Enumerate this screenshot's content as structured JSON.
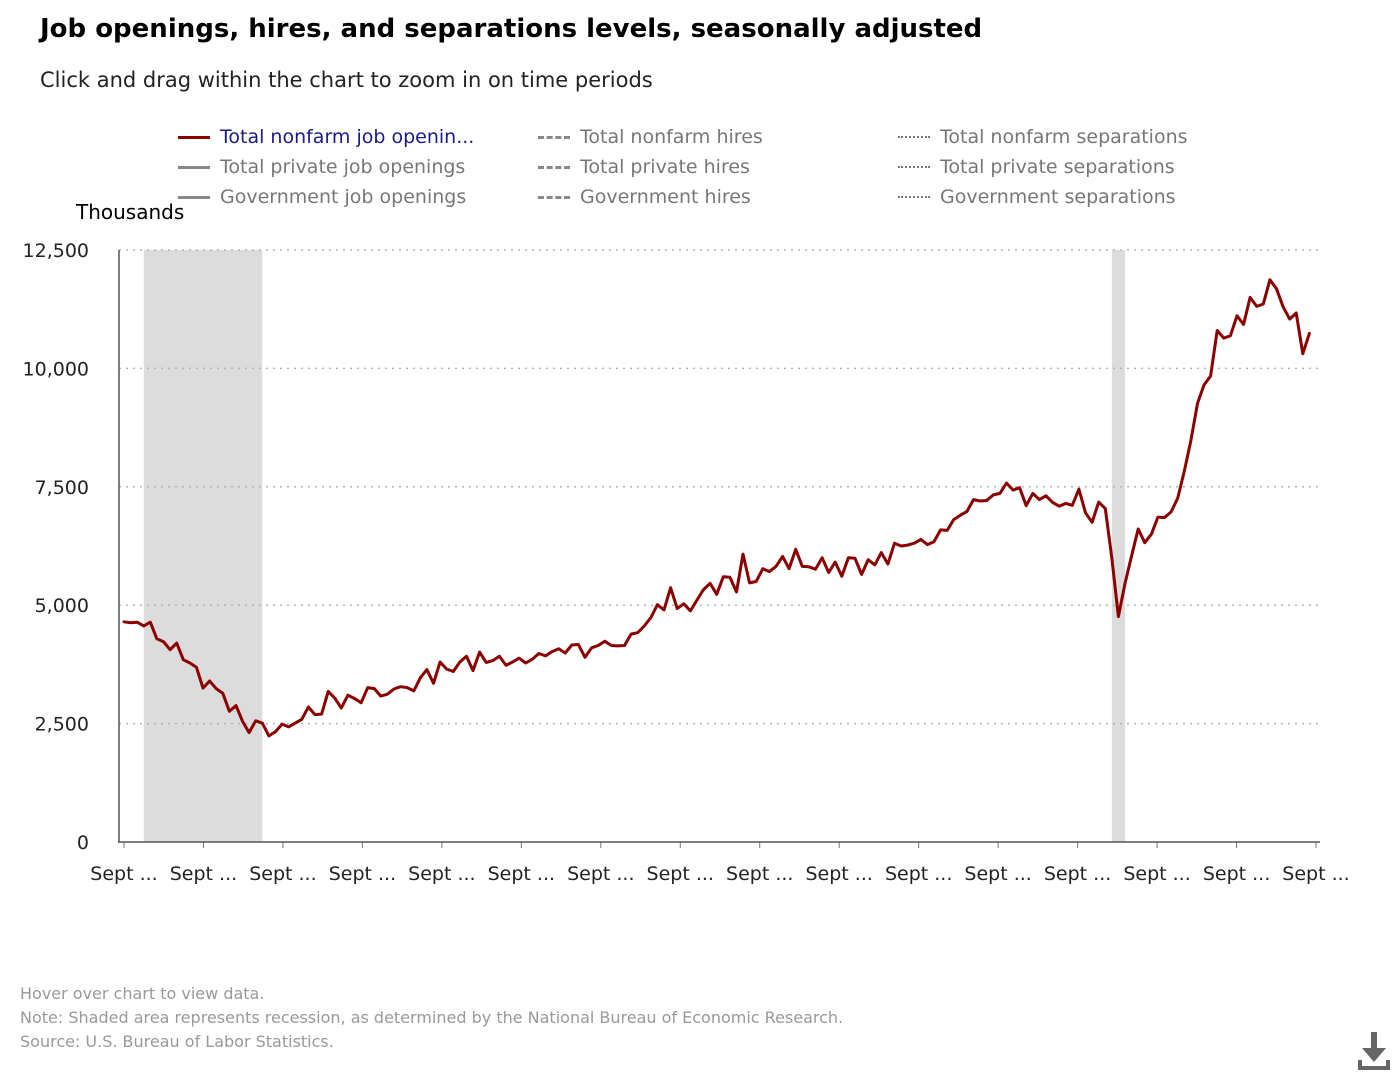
{
  "title": "Job openings, hires, and separations levels, seasonally adjusted",
  "subtitle": "Click and drag within the chart to zoom in on time periods",
  "legend": {
    "items": [
      {
        "label": "Total nonfarm job openin...",
        "style": "solid",
        "color": "#8b0000",
        "active": true
      },
      {
        "label": "Total nonfarm hires",
        "style": "dashed",
        "color": "#888888",
        "active": false
      },
      {
        "label": "Total nonfarm separations",
        "style": "dotted",
        "color": "#777777",
        "active": false
      },
      {
        "label": "Total private job openings",
        "style": "solid",
        "color": "#888888",
        "active": false
      },
      {
        "label": "Total private hires",
        "style": "dashed",
        "color": "#888888",
        "active": false
      },
      {
        "label": "Total private separations",
        "style": "dotted",
        "color": "#777777",
        "active": false
      },
      {
        "label": "Government job openings",
        "style": "solid",
        "color": "#888888",
        "active": false
      },
      {
        "label": "Government hires",
        "style": "dashed",
        "color": "#888888",
        "active": false
      },
      {
        "label": "Government separations",
        "style": "dotted",
        "color": "#777777",
        "active": false
      }
    ]
  },
  "footer": {
    "hover": "Hover over chart to view data.",
    "note": "Note: Shaded area represents recession, as determined by the National Bureau of Economic Research.",
    "source": "Source: U.S. Bureau of Labor Statistics."
  },
  "download_icon": "download-icon",
  "chart_data": {
    "type": "line",
    "ylabel": "Thousands",
    "ylim": [
      0,
      12500
    ],
    "yticks": [
      0,
      2500,
      5000,
      7500,
      10000,
      12500
    ],
    "ytick_labels": [
      "0",
      "2,500",
      "5,000",
      "7,500",
      "10,000",
      "12,500"
    ],
    "xtick_labels": [
      "Sept ...",
      "Sept ...",
      "Sept ...",
      "Sept ...",
      "Sept ...",
      "Sept ...",
      "Sept ...",
      "Sept ...",
      "Sept ...",
      "Sept ...",
      "Sept ...",
      "Sept ...",
      "Sept ...",
      "Sept ...",
      "Sept ...",
      "Sept ..."
    ],
    "xlim_months": [
      0,
      181
    ],
    "grid": "horizontal-dotted",
    "legend_position": "top",
    "line_color": "#8b0000",
    "recession_color": "#dcdcdc",
    "recessions_months": [
      [
        3,
        21
      ],
      [
        150,
        152
      ]
    ],
    "series": [
      {
        "name": "Total nonfarm job openin...",
        "values": [
          4650,
          4630,
          4640,
          4560,
          4640,
          4290,
          4230,
          4060,
          4200,
          3850,
          3780,
          3690,
          3250,
          3400,
          3240,
          3140,
          2760,
          2880,
          2550,
          2310,
          2560,
          2510,
          2240,
          2330,
          2490,
          2430,
          2510,
          2590,
          2850,
          2690,
          2700,
          3180,
          3040,
          2830,
          3100,
          3030,
          2940,
          3260,
          3240,
          3080,
          3120,
          3230,
          3280,
          3260,
          3190,
          3470,
          3640,
          3350,
          3800,
          3650,
          3600,
          3800,
          3920,
          3620,
          4010,
          3790,
          3830,
          3920,
          3730,
          3800,
          3880,
          3780,
          3860,
          3980,
          3930,
          4020,
          4080,
          3990,
          4160,
          4170,
          3900,
          4100,
          4150,
          4240,
          4150,
          4140,
          4150,
          4390,
          4420,
          4560,
          4740,
          5010,
          4900,
          5370,
          4930,
          5030,
          4880,
          5110,
          5330,
          5460,
          5230,
          5600,
          5590,
          5280,
          6080,
          5470,
          5500,
          5770,
          5710,
          5820,
          6030,
          5770,
          6180,
          5820,
          5810,
          5760,
          6000,
          5690,
          5910,
          5610,
          6000,
          5990,
          5650,
          5960,
          5850,
          6110,
          5870,
          6310,
          6250,
          6270,
          6310,
          6390,
          6280,
          6340,
          6590,
          6580,
          6810,
          6900,
          6980,
          7230,
          7200,
          7210,
          7330,
          7360,
          7580,
          7430,
          7480,
          7100,
          7360,
          7230,
          7310,
          7170,
          7090,
          7150,
          7110,
          7450,
          6950,
          6750,
          7180,
          7040,
          6000,
          4760,
          5460,
          6040,
          6610,
          6320,
          6500,
          6860,
          6850,
          6970,
          7260,
          7830,
          8480,
          9260,
          9650,
          9840,
          10800,
          10640,
          10690,
          11110,
          10930,
          11500,
          11310,
          11360,
          11870,
          11680,
          11300,
          11040,
          11170,
          10310,
          10740
        ]
      }
    ]
  }
}
